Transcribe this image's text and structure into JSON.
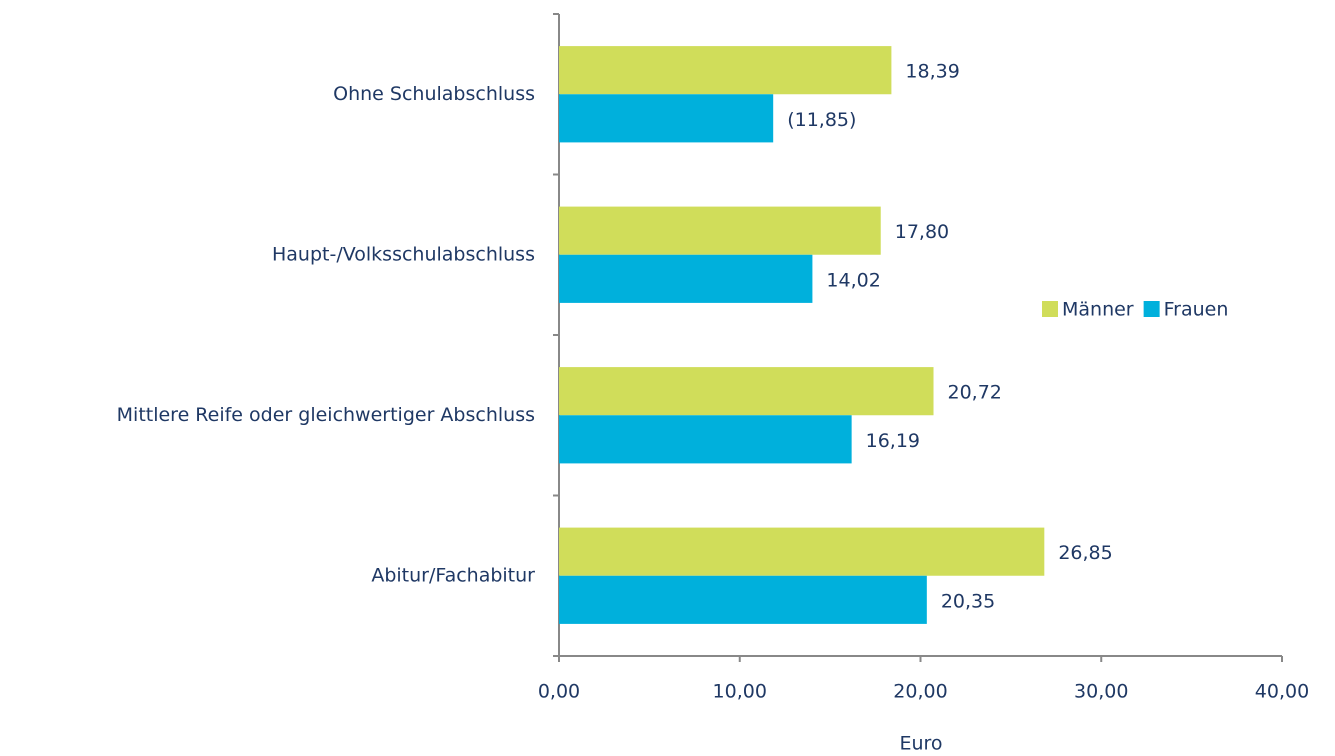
{
  "chart_data": {
    "type": "hbar",
    "categories": [
      "Ohne Schulabschluss",
      "Haupt-/Volksschulabschluss",
      "Mittlere Reife oder gleichwertiger Abschluss",
      "Abitur/Fachabitur"
    ],
    "series": [
      {
        "name": "Männer",
        "color": "#d0dd5a",
        "values": [
          18.39,
          17.8,
          20.72,
          26.85
        ],
        "value_labels": [
          "18,39",
          "17,80",
          "20,72",
          "26,85"
        ]
      },
      {
        "name": "Frauen",
        "color": "#00b0dc",
        "values": [
          11.85,
          14.02,
          16.19,
          20.35
        ],
        "value_labels": [
          "(11,85)",
          "14,02",
          "16,19",
          "20,35"
        ]
      }
    ],
    "xlabel": "Euro",
    "xlim": [
      0,
      40
    ],
    "xticks": [
      {
        "value": 0,
        "label": "0,00"
      },
      {
        "value": 10,
        "label": "10,00"
      },
      {
        "value": 20,
        "label": "20,00"
      },
      {
        "value": 30,
        "label": "30,00"
      },
      {
        "value": 40,
        "label": "40,00"
      }
    ],
    "grid": false,
    "legend": "right"
  }
}
